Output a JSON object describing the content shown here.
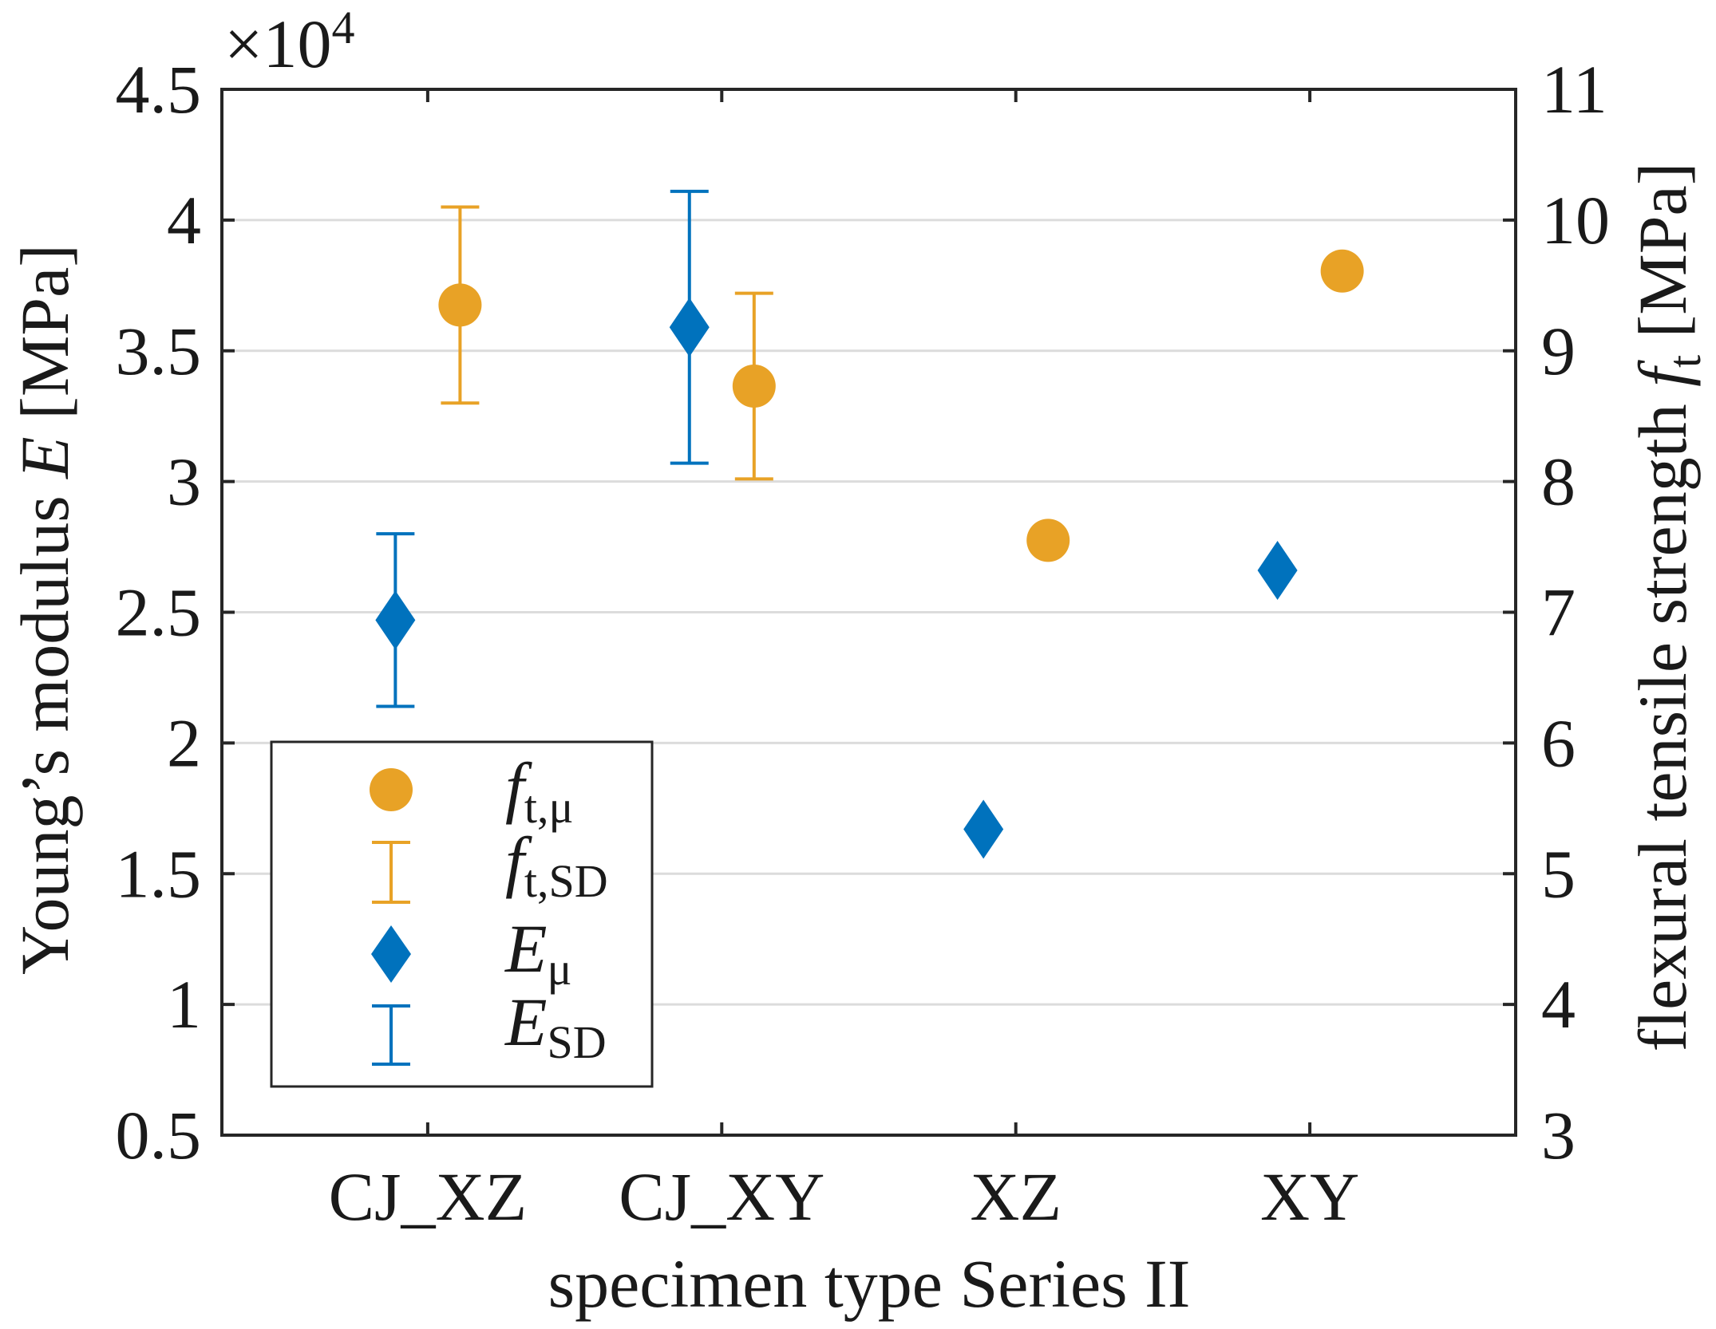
{
  "chart_data": {
    "type": "scatter",
    "categories": [
      "CJ_XZ",
      "CJ_XY",
      "XZ",
      "XY"
    ],
    "category_x": [
      1,
      2,
      3,
      4
    ],
    "xlim": [
      0.3,
      4.7
    ],
    "xlabel": "specimen type Series II",
    "grid": true,
    "left_axis": {
      "label_prefix": "Young’s modulus ",
      "label_var": "E",
      "label_suffix": " [MPa]",
      "multiplier": "×10",
      "multiplier_exponent": "4",
      "ylim": [
        5000,
        45000
      ],
      "ticks": [
        5000,
        10000,
        15000,
        20000,
        25000,
        30000,
        35000,
        40000,
        45000
      ],
      "tick_labels": [
        "0.5",
        "1",
        "1.5",
        "2",
        "2.5",
        "3",
        "3.5",
        "4",
        "4.5"
      ]
    },
    "right_axis": {
      "label_prefix": "flexural tensile strength ",
      "label_var": "f",
      "label_sub": "t",
      "label_suffix": " [MPa]",
      "ylim": [
        3,
        11
      ],
      "ticks": [
        3,
        4,
        5,
        6,
        7,
        8,
        9,
        10,
        11
      ],
      "tick_labels": [
        "3",
        "4",
        "5",
        "6",
        "7",
        "8",
        "9",
        "10",
        "11"
      ]
    },
    "legend_position": "lower-left",
    "series": [
      {
        "label_main": "f",
        "label_sub": "t,μ",
        "sd_label_main": "f",
        "sd_label_sub": "t,SD",
        "on_right_axis": true,
        "marker": "circle",
        "color": "#E8A226",
        "x": [
          1.11,
          2.11,
          3.11,
          4.11
        ],
        "values": [
          9.35,
          8.73,
          7.55,
          9.61
        ],
        "sd": [
          0.75,
          0.71,
          null,
          null
        ]
      },
      {
        "label_main": "E",
        "label_sub": "μ",
        "sd_label_main": "E",
        "sd_label_sub": "SD",
        "on_right_axis": false,
        "marker": "diamond",
        "color": "#0072BD",
        "x": [
          0.89,
          1.89,
          2.89,
          3.89
        ],
        "values": [
          24700,
          35900,
          16700,
          26600
        ],
        "sd": [
          3300,
          5200,
          null,
          null
        ]
      }
    ]
  }
}
